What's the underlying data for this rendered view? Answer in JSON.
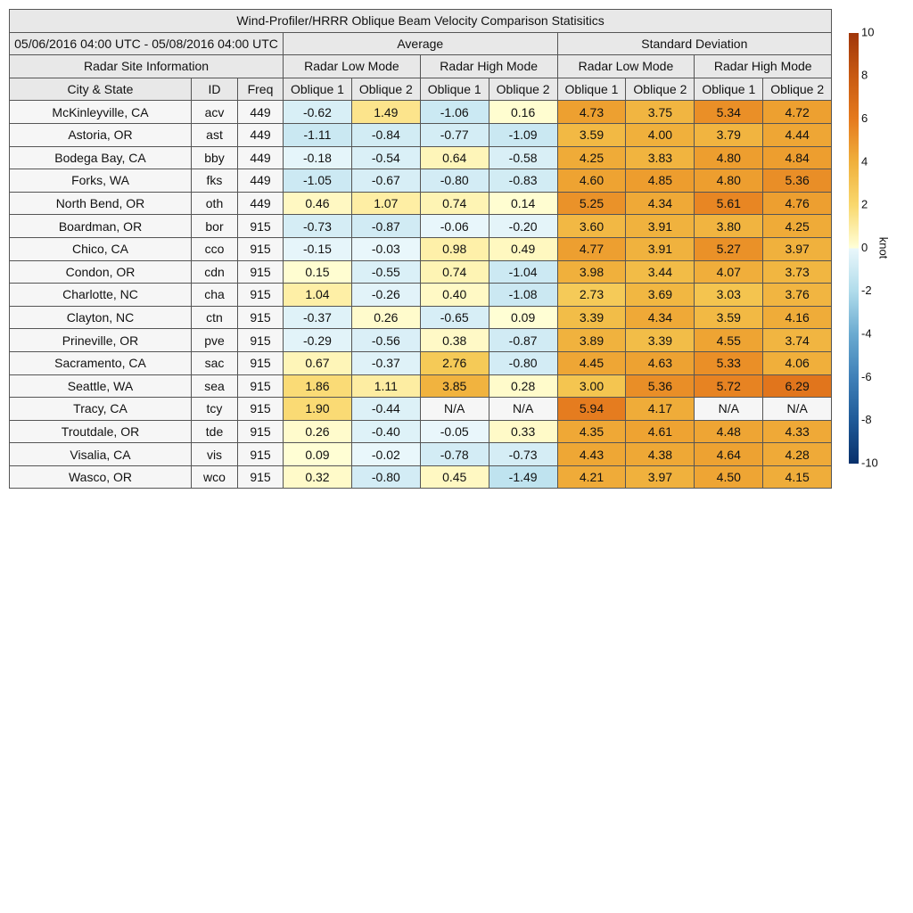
{
  "title": "Wind-Profiler/HRRR Oblique Beam Velocity Comparison Statisitics",
  "date_range": "05/06/2016 04:00 UTC - 05/08/2016 04:00 UTC",
  "site_info_label": "Radar Site Information",
  "groups": [
    {
      "label": "Average",
      "modes": [
        "Radar Low Mode",
        "Radar High Mode"
      ]
    },
    {
      "label": "Standard Deviation",
      "modes": [
        "Radar Low Mode",
        "Radar High Mode"
      ]
    }
  ],
  "columns": [
    "City & State",
    "ID",
    "Freq",
    "Oblique 1",
    "Oblique 2",
    "Oblique 1",
    "Oblique 2",
    "Oblique 1",
    "Oblique 2",
    "Oblique 1",
    "Oblique 2"
  ],
  "rows": [
    [
      "McKinleyville, CA",
      "acv",
      "449",
      "-0.62",
      "1.49",
      "-1.06",
      "0.16",
      "4.73",
      "3.75",
      "5.34",
      "4.72"
    ],
    [
      "Astoria, OR",
      "ast",
      "449",
      "-1.11",
      "-0.84",
      "-0.77",
      "-1.09",
      "3.59",
      "4.00",
      "3.79",
      "4.44"
    ],
    [
      "Bodega Bay, CA",
      "bby",
      "449",
      "-0.18",
      "-0.54",
      "0.64",
      "-0.58",
      "4.25",
      "3.83",
      "4.80",
      "4.84"
    ],
    [
      "Forks, WA",
      "fks",
      "449",
      "-1.05",
      "-0.67",
      "-0.80",
      "-0.83",
      "4.60",
      "4.85",
      "4.80",
      "5.36"
    ],
    [
      "North Bend, OR",
      "oth",
      "449",
      "0.46",
      "1.07",
      "0.74",
      "0.14",
      "5.25",
      "4.34",
      "5.61",
      "4.76"
    ],
    [
      "Boardman, OR",
      "bor",
      "915",
      "-0.73",
      "-0.87",
      "-0.06",
      "-0.20",
      "3.60",
      "3.91",
      "3.80",
      "4.25"
    ],
    [
      "Chico, CA",
      "cco",
      "915",
      "-0.15",
      "-0.03",
      "0.98",
      "0.49",
      "4.77",
      "3.91",
      "5.27",
      "3.97"
    ],
    [
      "Condon, OR",
      "cdn",
      "915",
      "0.15",
      "-0.55",
      "0.74",
      "-1.04",
      "3.98",
      "3.44",
      "4.07",
      "3.73"
    ],
    [
      "Charlotte, NC",
      "cha",
      "915",
      "1.04",
      "-0.26",
      "0.40",
      "-1.08",
      "2.73",
      "3.69",
      "3.03",
      "3.76"
    ],
    [
      "Clayton, NC",
      "ctn",
      "915",
      "-0.37",
      "0.26",
      "-0.65",
      "0.09",
      "3.39",
      "4.34",
      "3.59",
      "4.16"
    ],
    [
      "Prineville, OR",
      "pve",
      "915",
      "-0.29",
      "-0.56",
      "0.38",
      "-0.87",
      "3.89",
      "3.39",
      "4.55",
      "3.74"
    ],
    [
      "Sacramento, CA",
      "sac",
      "915",
      "0.67",
      "-0.37",
      "2.76",
      "-0.80",
      "4.45",
      "4.63",
      "5.33",
      "4.06"
    ],
    [
      "Seattle, WA",
      "sea",
      "915",
      "1.86",
      "1.11",
      "3.85",
      "0.28",
      "3.00",
      "5.36",
      "5.72",
      "6.29"
    ],
    [
      "Tracy, CA",
      "tcy",
      "915",
      "1.90",
      "-0.44",
      "N/A",
      "N/A",
      "5.94",
      "4.17",
      "N/A",
      "N/A"
    ],
    [
      "Troutdale, OR",
      "tde",
      "915",
      "0.26",
      "-0.40",
      "-0.05",
      "0.33",
      "4.35",
      "4.61",
      "4.48",
      "4.33"
    ],
    [
      "Visalia, CA",
      "vis",
      "915",
      "0.09",
      "-0.02",
      "-0.78",
      "-0.73",
      "4.43",
      "4.38",
      "4.64",
      "4.28"
    ],
    [
      "Wasco, OR",
      "wco",
      "915",
      "0.32",
      "-0.80",
      "0.45",
      "-1.49",
      "4.21",
      "3.97",
      "4.50",
      "4.15"
    ]
  ],
  "colorbar": {
    "label": "knot",
    "lim": [
      -10,
      10
    ],
    "ticks": [
      -10,
      -8,
      -6,
      -4,
      -2,
      0,
      2,
      4,
      6,
      8,
      10
    ]
  }
}
